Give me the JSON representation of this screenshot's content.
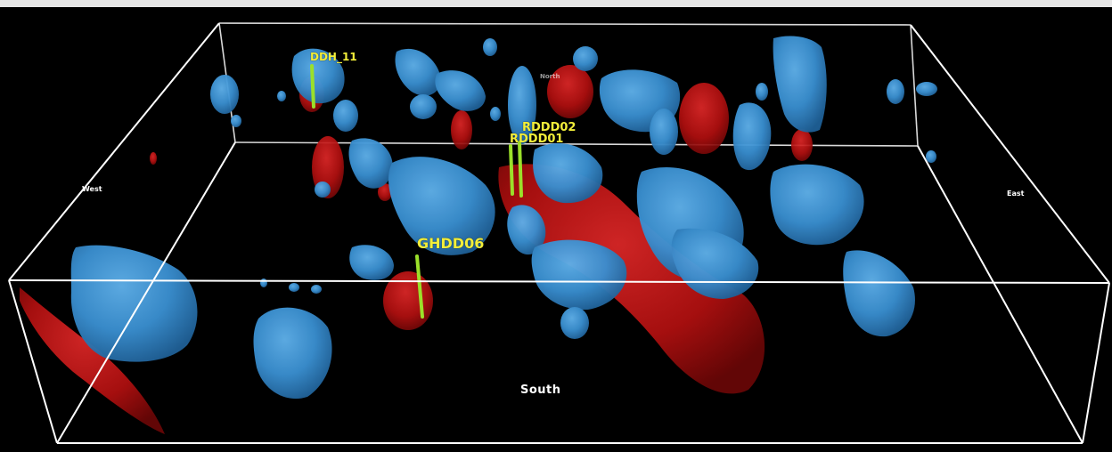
{
  "colors": {
    "background": "#000000",
    "box_edge": "#ffffff",
    "low_anomaly": "#3a8fd0",
    "high_anomaly": "#c81414",
    "drill_trace": "#9be02a",
    "hole_label": "#f2ee3a"
  },
  "axes": {
    "south": "South",
    "west": "West",
    "east": "East",
    "north": "North"
  },
  "drill_holes": [
    {
      "id": "ddh_11",
      "label": "DDH_11"
    },
    {
      "id": "rddd02",
      "label": "RDDD02"
    },
    {
      "id": "rddd01",
      "label": "RDDD01"
    },
    {
      "id": "ghdd06",
      "label": "GHDD06"
    }
  ]
}
